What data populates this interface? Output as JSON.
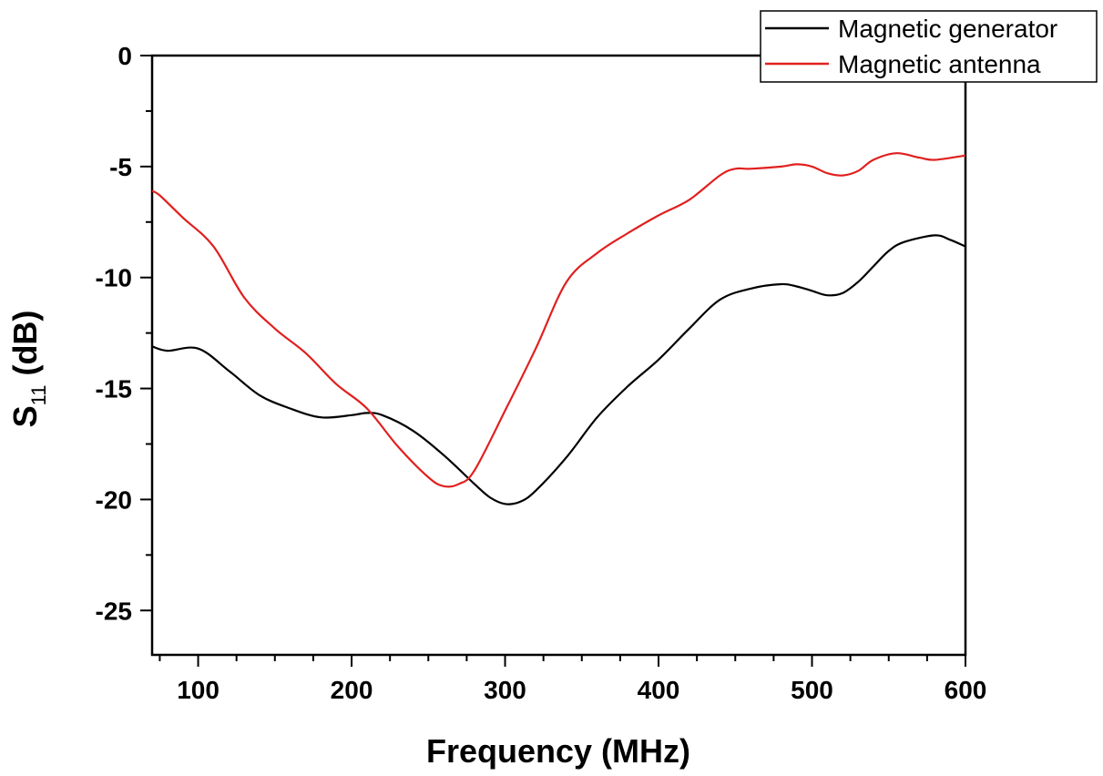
{
  "chart_data": {
    "type": "line",
    "xlabel": "Frequency (MHz)",
    "ylabel": {
      "main": "S",
      "sub": "11",
      "unit": " (dB)"
    },
    "xlim": [
      70,
      600
    ],
    "ylim": [
      -27,
      0
    ],
    "xticks": [
      100,
      200,
      300,
      400,
      500,
      600
    ],
    "yticks": [
      0,
      -5,
      -10,
      -15,
      -20,
      -25
    ],
    "grid": false,
    "legend_position": "top-right",
    "series": [
      {
        "name": "Magnetic generator",
        "color": "#000000",
        "x": [
          70,
          80,
          100,
          120,
          140,
          160,
          180,
          200,
          210,
          220,
          240,
          260,
          280,
          290,
          300,
          310,
          320,
          340,
          360,
          380,
          400,
          420,
          440,
          460,
          480,
          490,
          500,
          510,
          520,
          530,
          540,
          550,
          560,
          580,
          590,
          600
        ],
        "y": [
          -13.1,
          -13.3,
          -13.2,
          -14.2,
          -15.3,
          -15.9,
          -16.3,
          -16.2,
          -16.1,
          -16.2,
          -16.9,
          -18.0,
          -19.3,
          -19.9,
          -20.2,
          -20.1,
          -19.6,
          -18.1,
          -16.3,
          -14.9,
          -13.7,
          -12.3,
          -11.0,
          -10.5,
          -10.3,
          -10.4,
          -10.6,
          -10.8,
          -10.7,
          -10.2,
          -9.5,
          -8.8,
          -8.4,
          -8.1,
          -8.3,
          -8.6
        ]
      },
      {
        "name": "Magnetic antenna",
        "color": "#e0201f",
        "x": [
          70,
          75,
          90,
          110,
          130,
          150,
          170,
          190,
          210,
          230,
          250,
          260,
          270,
          280,
          300,
          320,
          340,
          360,
          380,
          400,
          420,
          440,
          450,
          460,
          480,
          490,
          500,
          510,
          520,
          530,
          540,
          555,
          570,
          580,
          600
        ],
        "y": [
          -6.1,
          -6.3,
          -7.3,
          -8.6,
          -10.9,
          -12.3,
          -13.4,
          -14.8,
          -15.9,
          -17.6,
          -19.0,
          -19.4,
          -19.3,
          -18.7,
          -16.0,
          -13.2,
          -10.2,
          -8.9,
          -8.0,
          -7.2,
          -6.5,
          -5.4,
          -5.1,
          -5.1,
          -5.0,
          -4.9,
          -5.0,
          -5.3,
          -5.4,
          -5.2,
          -4.7,
          -4.4,
          -4.6,
          -4.7,
          -4.5
        ]
      }
    ]
  }
}
